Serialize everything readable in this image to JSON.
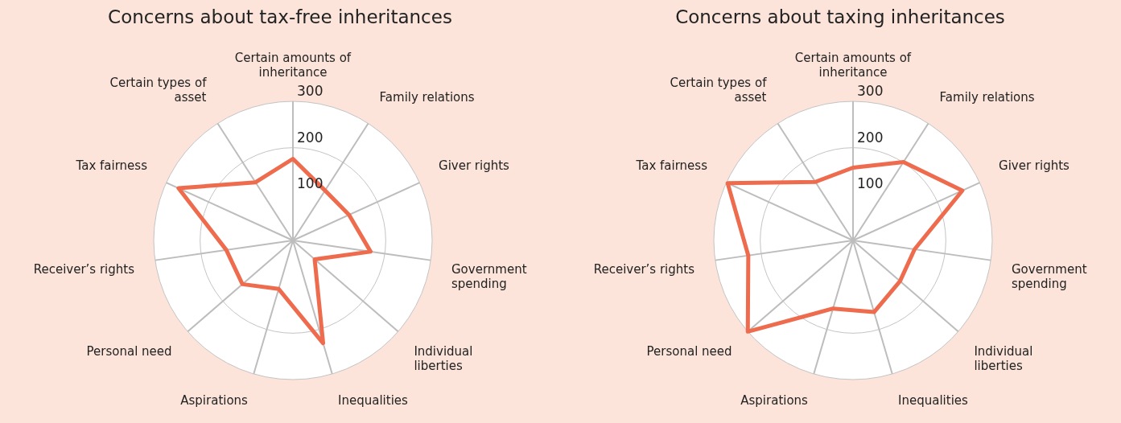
{
  "chart_data": [
    {
      "type": "radar",
      "title": "Concerns about tax-free inheritances",
      "categories": [
        "Certain amounts of inheritance",
        "Family relations",
        "Giver rights",
        "Government spending",
        "Individual liberties",
        "Inequalities",
        "Aspirations",
        "Personal need",
        "Receiver’s rights",
        "Tax fairness",
        "Certain types of asset"
      ],
      "series": [
        {
          "color": "#ee6b4d",
          "values": [
            176,
            128,
            133,
            169,
            62,
            231,
            109,
            144,
            145,
            271,
            149
          ]
        }
      ],
      "ylim": [
        0,
        300
      ],
      "yticks": [
        100,
        200,
        300
      ],
      "grid": true,
      "marker": "none",
      "legend": false
    },
    {
      "type": "radar",
      "title": "Concerns about taxing inheritances",
      "categories": [
        "Certain amounts of inheritance",
        "Family relations",
        "Giver rights",
        "Government spending",
        "Individual liberties",
        "Inequalities",
        "Aspirations",
        "Personal need",
        "Receiver’s rights",
        "Tax fairness",
        "Certain types of asset"
      ],
      "series": [
        {
          "color": "#ee6b4d",
          "values": [
            157,
            201,
            259,
            134,
            134,
            161,
            153,
            300,
            228,
            297,
            150
          ]
        }
      ],
      "ylim": [
        0,
        300
      ],
      "yticks": [
        100,
        200,
        300
      ],
      "grid": true,
      "marker": "none",
      "legend": false
    }
  ]
}
